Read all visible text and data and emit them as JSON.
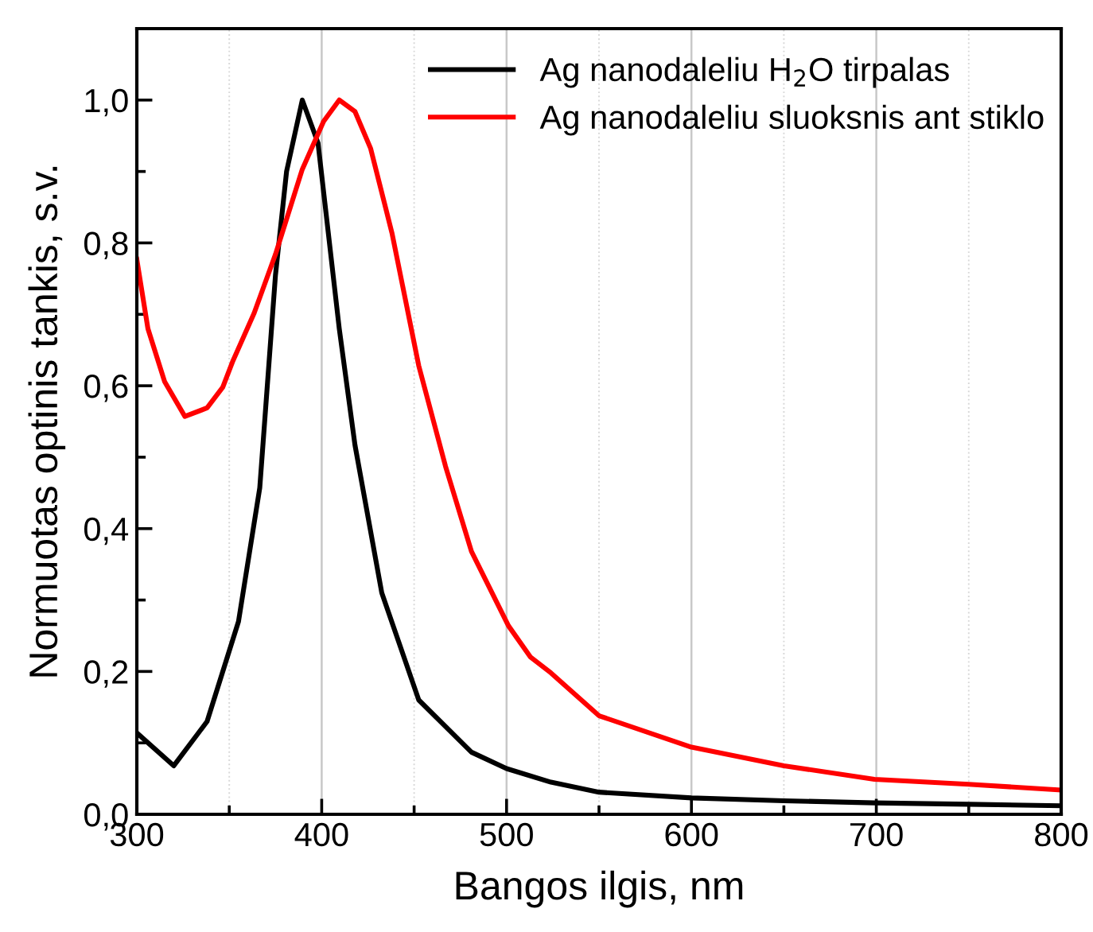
{
  "chart_data": {
    "type": "line",
    "xlabel": "Bangos ilgis, nm",
    "ylabel": "Normuotas optinis tankis, s.v.",
    "xlim": [
      300,
      800
    ],
    "ylim": [
      0,
      1.1
    ],
    "xticks": [
      300,
      {
        "value": 350,
        "label": null
      },
      400,
      {
        "value": 450,
        "label": null
      },
      500,
      {
        "value": 550,
        "label": null
      },
      600,
      {
        "value": 650,
        "label": null
      },
      700,
      {
        "value": 750,
        "label": null
      },
      800
    ],
    "yticks": [
      {
        "value": 0,
        "label": "0,0"
      },
      {
        "value": 0.1,
        "label": null
      },
      {
        "value": 0.2,
        "label": "0,2"
      },
      {
        "value": 0.3,
        "label": null
      },
      {
        "value": 0.4,
        "label": "0,4"
      },
      {
        "value": 0.5,
        "label": null
      },
      {
        "value": 0.6,
        "label": "0,6"
      },
      {
        "value": 0.7,
        "label": null
      },
      {
        "value": 0.8,
        "label": "0,8"
      },
      {
        "value": 0.9,
        "label": null
      },
      {
        "value": 1.0,
        "label": "1,0"
      }
    ],
    "grid": "x",
    "legend": "top right",
    "marker": "none",
    "line_style": "solid",
    "series": [
      {
        "name": "Ag nanodaleliu H$_{2}$O tirpalas",
        "color": "#000000",
        "x": [
          300,
          320,
          338,
          355,
          366.5,
          375,
          381,
          389.5,
          398,
          409.5,
          418,
          432.5,
          452.5,
          481,
          500,
          524,
          550,
          600,
          650,
          699,
          750,
          800
        ],
        "values": [
          0.114,
          0.068,
          0.13,
          0.27,
          0.457,
          0.755,
          0.9,
          1.0,
          0.94,
          0.68,
          0.517,
          0.31,
          0.16,
          0.087,
          0.064,
          0.045,
          0.031,
          0.023,
          0.019,
          0.016,
          0.014,
          0.012
        ]
      },
      {
        "name": "Ag nanodaleliu sluoksnis ant stiklo",
        "color": "#ff0000",
        "x": [
          300,
          306,
          315,
          326,
          338,
          346.5,
          352,
          363.5,
          375,
          389.5,
          401,
          409.5,
          418,
          426.5,
          438,
          452.5,
          467,
          481,
          501,
          513,
          524,
          550,
          600,
          650,
          699,
          750,
          800
        ],
        "values": [
          0.777,
          0.68,
          0.606,
          0.557,
          0.569,
          0.598,
          0.635,
          0.702,
          0.784,
          0.903,
          0.97,
          1.0,
          0.984,
          0.932,
          0.814,
          0.628,
          0.487,
          0.368,
          0.264,
          0.22,
          0.198,
          0.138,
          0.094,
          0.068,
          0.049,
          0.042,
          0.034
        ]
      }
    ]
  }
}
